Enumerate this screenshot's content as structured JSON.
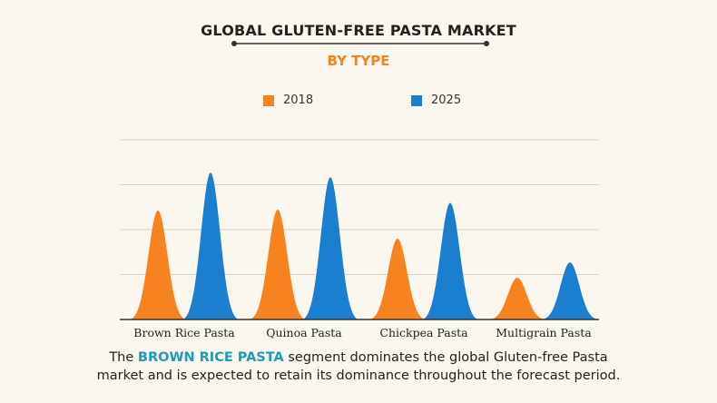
{
  "header": {
    "title": "GLOBAL GLUTEN-FREE PASTA MARKET",
    "subtitle": "BY TYPE"
  },
  "caption": {
    "prefix": "The ",
    "highlight": "BROWN RICE PASTA",
    "line1_rest": " segment dominates the global Gluten-free Pasta",
    "line2": "market and is expected to retain its dominance throughout the forecast period."
  },
  "colors": {
    "series_2018": "#f7831f",
    "series_2025": "#1a7fcf",
    "highlight": "#1e9bb5"
  },
  "chart_data": {
    "type": "area",
    "title": "GLOBAL GLUTEN-FREE PASTA MARKET",
    "subtitle": "BY TYPE",
    "categories": [
      "Brown Rice Pasta",
      "Quinoa Pasta",
      "Chickpea Pasta",
      "Multigrain Pasta"
    ],
    "series": [
      {
        "name": "2018",
        "values": [
          2.43,
          2.45,
          1.8,
          0.93
        ]
      },
      {
        "name": "2025",
        "values": [
          3.27,
          3.17,
          2.6,
          1.27
        ]
      }
    ],
    "ylim": [
      0,
      4
    ],
    "grid": true,
    "legend": "top-center",
    "xlabel": "",
    "ylabel": ""
  }
}
